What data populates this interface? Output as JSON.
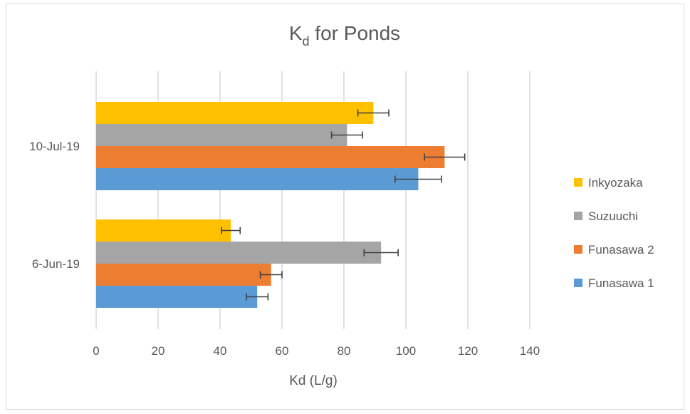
{
  "chart_data": {
    "type": "bar",
    "orientation": "horizontal",
    "title": "K",
    "title_subscript": "d",
    "title_suffix": " for Ponds",
    "xlabel": "Kd (L/g)",
    "ylabel": "",
    "xlim": [
      0,
      140
    ],
    "xticks": [
      0,
      20,
      40,
      60,
      80,
      100,
      120,
      140
    ],
    "categories": [
      "6-Jun-19",
      "10-Jul-19"
    ],
    "grid": true,
    "legend_position": "right",
    "series": [
      {
        "name": "Funasawa 1",
        "color": "#5b9bd5",
        "values": [
          52,
          104
        ],
        "errors": [
          3.5,
          7.5
        ]
      },
      {
        "name": "Funasawa 2",
        "color": "#ed7d31",
        "values": [
          56.5,
          112.5
        ],
        "errors": [
          3.5,
          6.5
        ]
      },
      {
        "name": "Suzuuchi",
        "color": "#a5a5a5",
        "values": [
          92,
          81
        ],
        "errors": [
          5.5,
          5
        ]
      },
      {
        "name": "Inkyozaka",
        "color": "#ffc000",
        "values": [
          43.5,
          89.5
        ],
        "errors": [
          3,
          5
        ]
      }
    ]
  }
}
